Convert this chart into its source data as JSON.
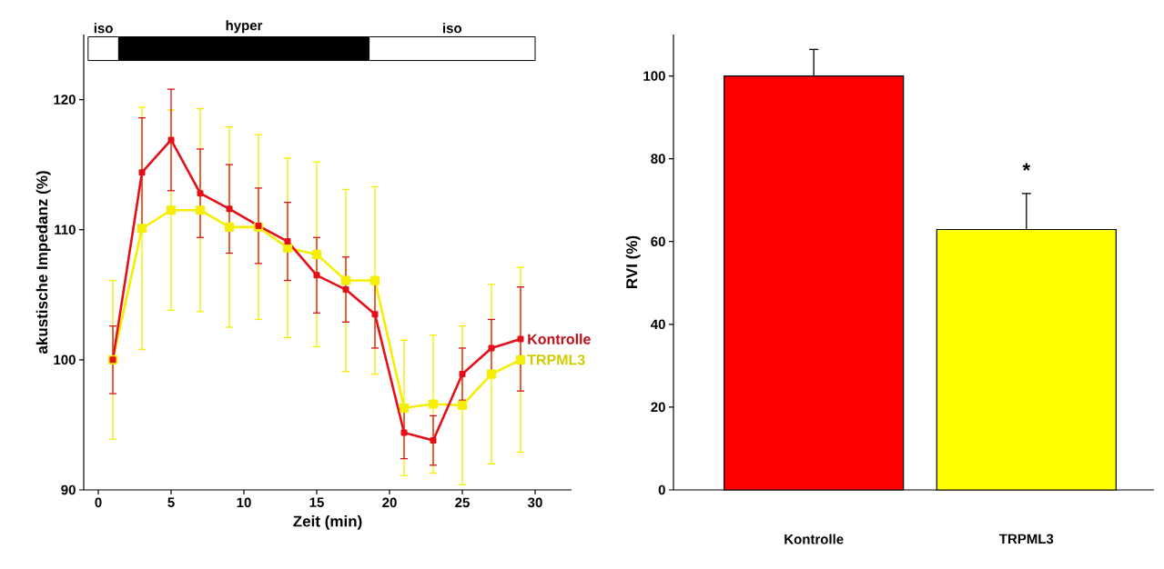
{
  "chart_data": [
    {
      "type": "line",
      "xlabel": "Zeit (min)",
      "ylabel": "akustische Impedanz (%)",
      "x": [
        1,
        3,
        5,
        7,
        9,
        11,
        13,
        15,
        17,
        19,
        21,
        23,
        25,
        27,
        29
      ],
      "series": [
        {
          "name": "Kontrolle",
          "color": "#e3101a",
          "values": [
            100.0,
            114.4,
            116.9,
            112.8,
            111.6,
            110.3,
            109.1,
            106.5,
            105.4,
            103.5,
            94.4,
            93.8,
            98.9,
            100.9,
            101.6
          ],
          "errors": [
            2.6,
            4.2,
            3.9,
            3.4,
            3.4,
            2.9,
            3.0,
            2.9,
            2.5,
            2.6,
            2.0,
            1.9,
            2.0,
            2.2,
            4.0
          ]
        },
        {
          "name": "TRPML3",
          "color": "#f5ee00",
          "values": [
            100.0,
            110.1,
            111.5,
            111.5,
            110.2,
            110.2,
            108.6,
            108.1,
            106.1,
            106.1,
            96.3,
            96.6,
            96.5,
            98.9,
            100.0
          ],
          "errors": [
            6.1,
            9.3,
            7.7,
            7.8,
            7.7,
            7.1,
            6.9,
            7.1,
            7.0,
            7.2,
            5.2,
            5.3,
            6.1,
            6.9,
            7.1
          ]
        }
      ],
      "xlim": [
        -1,
        32.5
      ],
      "ylim": [
        90,
        125
      ],
      "xticks": [
        0,
        5,
        10,
        15,
        20,
        25,
        30
      ],
      "yticks": [
        90,
        100,
        110,
        120
      ],
      "bands": [
        {
          "axis": "x",
          "from": -0.7,
          "to": 1.4,
          "label": "iso",
          "color": "#ffffff"
        },
        {
          "axis": "x",
          "from": 1.4,
          "to": 18.6,
          "label": "hyper",
          "color": "#000000"
        },
        {
          "axis": "x",
          "from": 18.6,
          "to": 30,
          "label": "iso",
          "color": "#ffffff"
        }
      ],
      "marker": "square"
    },
    {
      "type": "bar",
      "ylabel": "RVI (%)",
      "categories": [
        "Kontrolle",
        "TRPML3"
      ],
      "values": [
        100,
        62.9
      ],
      "errors": [
        6.4,
        8.7
      ],
      "colors": [
        "#ff0000",
        "#ffff00"
      ],
      "ylim": [
        0,
        110
      ],
      "yticks": [
        0,
        20,
        40,
        60,
        80,
        100
      ],
      "annotations": [
        "*"
      ]
    }
  ]
}
